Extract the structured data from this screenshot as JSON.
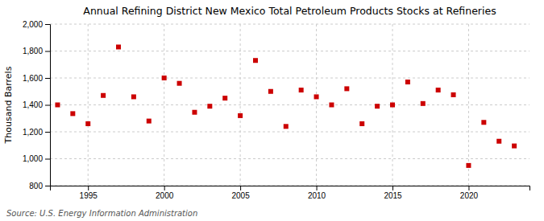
{
  "chart_data": {
    "type": "scatter",
    "title": "Annual Refining District New Mexico Total Petroleum Products Stocks at Refineries",
    "ylabel": "Thousand Barrels",
    "annotations": [
      "Source: U.S. Energy Information Administration"
    ],
    "x": [
      1993,
      1994,
      1995,
      1996,
      1997,
      1998,
      1999,
      2000,
      2001,
      2002,
      2003,
      2004,
      2005,
      2006,
      2007,
      2008,
      2009,
      2010,
      2011,
      2012,
      2013,
      2014,
      2015,
      2016,
      2017,
      2018,
      2019,
      2020,
      2021,
      2022,
      2023
    ],
    "values": [
      1400,
      1335,
      1260,
      1470,
      1830,
      1460,
      1280,
      1600,
      1560,
      1345,
      1390,
      1450,
      1320,
      1730,
      1500,
      1240,
      1510,
      1460,
      1400,
      1520,
      1260,
      1390,
      1400,
      1570,
      1410,
      1510,
      1475,
      950,
      1270,
      1130,
      1095
    ],
    "color": "#cc0000",
    "marker": "square",
    "xlim": [
      1992.5,
      2024
    ],
    "xticks": [
      1995,
      2000,
      2005,
      2010,
      2015,
      2020
    ],
    "ylim": [
      800,
      2000
    ],
    "yticks": [
      800,
      {
        "value": 1000,
        "label": "1,000"
      },
      {
        "value": 1200,
        "label": "1,200"
      },
      {
        "value": 1400,
        "label": "1,400"
      },
      {
        "value": 1600,
        "label": "1,600"
      },
      {
        "value": 1800,
        "label": "1,800"
      },
      {
        "value": 2000,
        "label": "2,000"
      }
    ],
    "grid": true
  }
}
